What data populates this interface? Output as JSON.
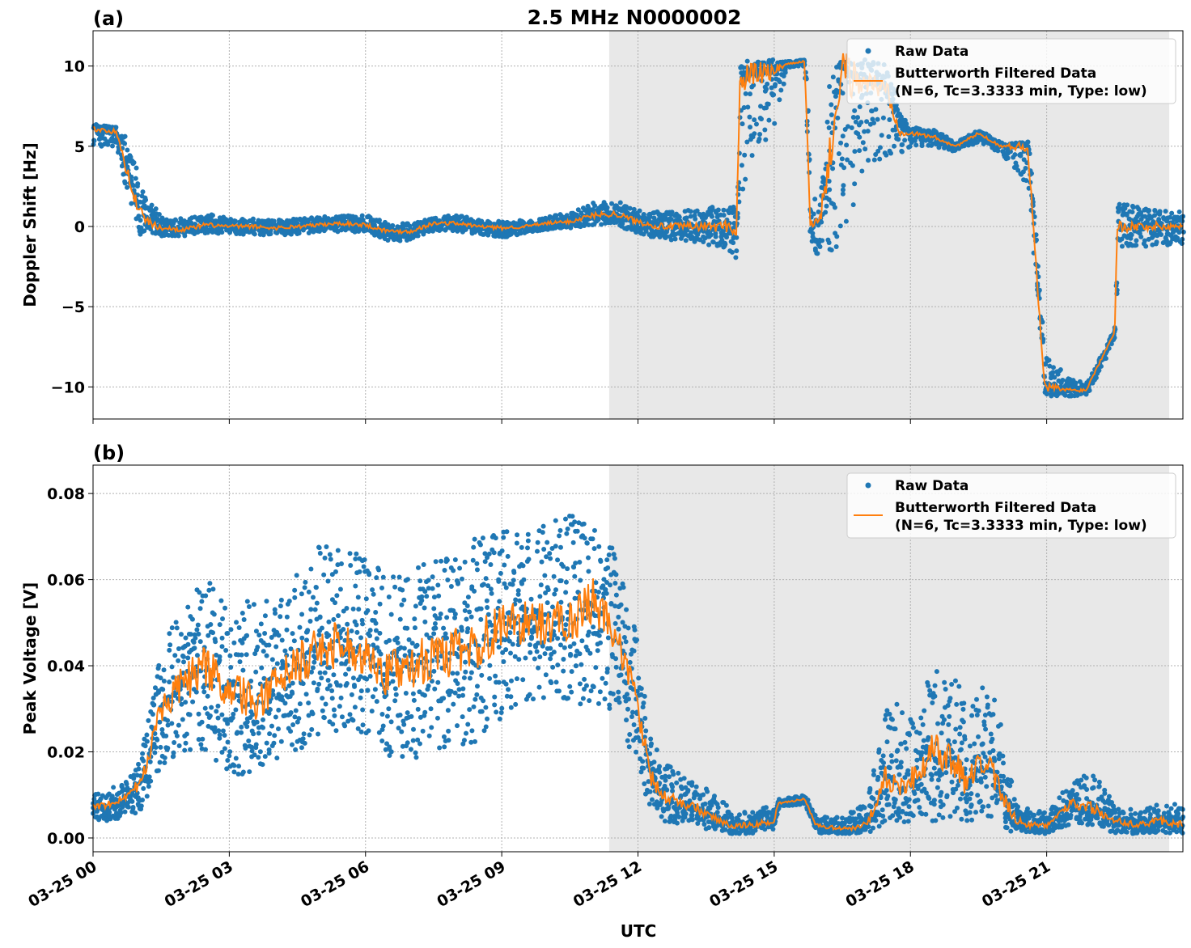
{
  "title": "2.5 MHz N0000002",
  "colors": {
    "raw": "#1f77b4",
    "filtered": "#ff7f0e",
    "shade": "#e8e8e8",
    "grid": "#b0b0b0"
  },
  "chart_data": [
    {
      "type": "scatter",
      "panel_label": "(a)",
      "ylabel": "Doppler Shift [Hz]",
      "xlabel": "",
      "xlim": [
        "03-25 00:00",
        "03-26 00:00"
      ],
      "ylim": [
        -12,
        12.2
      ],
      "yticks": [
        -10,
        -5,
        0,
        5,
        10
      ],
      "ytick_labels": [
        "−10",
        "−5",
        "0",
        "5",
        "10"
      ],
      "grid": true,
      "legend_placement": "top-right",
      "shaded_interval": [
        "03-25 11:22",
        "03-25 23:42"
      ],
      "legend": [
        "Raw Data",
        "Butterworth Filtered Data\n(N=6, Tc=3.3333 min, Type: low)"
      ],
      "columns": [
        "time",
        "filtered",
        "raw_min",
        "raw_max"
      ],
      "series": [
        [
          "00:00",
          6.1,
          5.0,
          6.4
        ],
        [
          "00:30",
          5.9,
          5.0,
          6.2
        ],
        [
          "00:45",
          3.5,
          1.5,
          5.5
        ],
        [
          "01:00",
          1.0,
          -0.5,
          3.0
        ],
        [
          "01:15",
          0.2,
          -0.5,
          1.5
        ],
        [
          "01:30",
          -0.1,
          -0.6,
          0.6
        ],
        [
          "02:00",
          -0.2,
          -0.6,
          0.5
        ],
        [
          "02:30",
          0.1,
          -0.4,
          0.8
        ],
        [
          "03:00",
          0.0,
          -0.5,
          0.5
        ],
        [
          "03:30",
          0.0,
          -0.5,
          0.5
        ],
        [
          "04:00",
          -0.1,
          -0.6,
          0.4
        ],
        [
          "04:30",
          0.0,
          -0.5,
          0.5
        ],
        [
          "05:00",
          0.1,
          -0.4,
          0.6
        ],
        [
          "05:30",
          0.2,
          -0.3,
          0.7
        ],
        [
          "06:00",
          0.1,
          -0.4,
          0.7
        ],
        [
          "06:30",
          -0.3,
          -0.9,
          0.2
        ],
        [
          "07:00",
          -0.3,
          -0.9,
          0.2
        ],
        [
          "07:30",
          0.2,
          -0.3,
          0.6
        ],
        [
          "08:00",
          0.2,
          -0.3,
          0.7
        ],
        [
          "08:30",
          0.0,
          -0.5,
          0.4
        ],
        [
          "09:00",
          -0.1,
          -0.7,
          0.3
        ],
        [
          "09:30",
          0.0,
          -0.4,
          0.4
        ],
        [
          "10:00",
          0.2,
          -0.2,
          0.6
        ],
        [
          "10:30",
          0.3,
          -0.1,
          0.9
        ],
        [
          "11:00",
          0.7,
          0.1,
          1.5
        ],
        [
          "11:30",
          0.8,
          0.1,
          1.6
        ],
        [
          "12:00",
          0.3,
          -0.5,
          1.0
        ],
        [
          "12:30",
          0.0,
          -0.8,
          0.9
        ],
        [
          "13:00",
          0.0,
          -0.9,
          1.0
        ],
        [
          "13:30",
          0.0,
          -1.1,
          1.2
        ],
        [
          "14:00",
          0.0,
          -1.6,
          1.5
        ],
        [
          "14:10",
          -0.3,
          -2.0,
          1.0
        ],
        [
          "14:15",
          9.0,
          2.0,
          10.4
        ],
        [
          "14:30",
          9.5,
          4.0,
          10.4
        ],
        [
          "15:00",
          9.6,
          6.0,
          10.4
        ],
        [
          "15:15",
          10.1,
          9.9,
          10.3
        ],
        [
          "15:40",
          10.3,
          10.0,
          10.4
        ],
        [
          "15:48",
          0.0,
          -1.5,
          2.0
        ],
        [
          "16:00",
          0.2,
          -1.8,
          1.5
        ],
        [
          "16:15",
          5.0,
          -1.5,
          10.3
        ],
        [
          "16:30",
          9.5,
          -2.0,
          10.4
        ],
        [
          "17:00",
          9.0,
          4.0,
          10.4
        ],
        [
          "17:30",
          8.5,
          4.0,
          10.0
        ],
        [
          "17:45",
          6.0,
          4.5,
          7.0
        ],
        [
          "18:00",
          5.8,
          5.0,
          6.2
        ],
        [
          "18:30",
          5.6,
          5.0,
          6.0
        ],
        [
          "19:00",
          5.0,
          4.6,
          5.3
        ],
        [
          "19:30",
          5.8,
          5.3,
          6.0
        ],
        [
          "20:00",
          5.0,
          4.5,
          5.2
        ],
        [
          "20:35",
          5.0,
          2.5,
          5.3
        ],
        [
          "20:57",
          -10.0,
          -10.6,
          -8.0
        ],
        [
          "21:30",
          -10.2,
          -10.6,
          -9.5
        ],
        [
          "21:52",
          -10.2,
          -10.5,
          -9.8
        ],
        [
          "22:30",
          -6.5,
          -7.0,
          -6.2
        ],
        [
          "22:33",
          0.0,
          -1.5,
          1.5
        ],
        [
          "23:00",
          0.0,
          -1.3,
          1.2
        ],
        [
          "23:30",
          0.0,
          -1.2,
          1.0
        ],
        [
          "24:00",
          0.0,
          -1.2,
          1.0
        ]
      ]
    },
    {
      "type": "scatter",
      "panel_label": "(b)",
      "ylabel": "Peak Voltage [V]",
      "xlabel": "UTC",
      "xlim": [
        "03-25 00:00",
        "03-26 00:00"
      ],
      "ylim": [
        -0.0032,
        0.0866
      ],
      "yticks": [
        0,
        0.02,
        0.04,
        0.06,
        0.08
      ],
      "ytick_labels": [
        "0.00",
        "0.02",
        "0.04",
        "0.06",
        "0.08"
      ],
      "xticks": [
        "00:00",
        "03:00",
        "06:00",
        "09:00",
        "12:00",
        "15:00",
        "18:00",
        "21:00"
      ],
      "xtick_labels": [
        "03-25 00",
        "03-25 03",
        "03-25 06",
        "03-25 09",
        "03-25 12",
        "03-25 15",
        "03-25 18",
        "03-25 21"
      ],
      "grid": true,
      "legend_placement": "top-right",
      "shaded_interval": [
        "03-25 11:22",
        "03-25 23:42"
      ],
      "legend": [
        "Raw Data",
        "Butterworth Filtered Data\n(N=6, Tc=3.3333 min, Type: low)"
      ],
      "columns": [
        "time",
        "filtered",
        "raw_min",
        "raw_max"
      ],
      "series": [
        [
          "00:00",
          0.007,
          0.004,
          0.011
        ],
        [
          "00:30",
          0.008,
          0.004,
          0.012
        ],
        [
          "01:00",
          0.012,
          0.006,
          0.018
        ],
        [
          "01:15",
          0.02,
          0.01,
          0.03
        ],
        [
          "01:30",
          0.03,
          0.017,
          0.045
        ],
        [
          "02:00",
          0.036,
          0.02,
          0.055
        ],
        [
          "02:30",
          0.04,
          0.02,
          0.06
        ],
        [
          "03:00",
          0.033,
          0.014,
          0.055
        ],
        [
          "03:30",
          0.032,
          0.014,
          0.055
        ],
        [
          "04:00",
          0.035,
          0.017,
          0.057
        ],
        [
          "04:30",
          0.04,
          0.02,
          0.062
        ],
        [
          "05:00",
          0.044,
          0.024,
          0.07
        ],
        [
          "05:30",
          0.045,
          0.024,
          0.068
        ],
        [
          "06:00",
          0.043,
          0.022,
          0.065
        ],
        [
          "06:30",
          0.038,
          0.018,
          0.062
        ],
        [
          "07:00",
          0.04,
          0.018,
          0.062
        ],
        [
          "07:30",
          0.042,
          0.02,
          0.065
        ],
        [
          "08:00",
          0.043,
          0.021,
          0.068
        ],
        [
          "08:30",
          0.045,
          0.022,
          0.07
        ],
        [
          "09:00",
          0.05,
          0.028,
          0.072
        ],
        [
          "09:30",
          0.05,
          0.032,
          0.072
        ],
        [
          "10:00",
          0.05,
          0.032,
          0.074
        ],
        [
          "10:30",
          0.05,
          0.032,
          0.075
        ],
        [
          "11:00",
          0.055,
          0.03,
          0.074
        ],
        [
          "11:30",
          0.048,
          0.03,
          0.066
        ],
        [
          "12:00",
          0.03,
          0.015,
          0.045
        ],
        [
          "12:15",
          0.015,
          0.006,
          0.025
        ],
        [
          "12:30",
          0.01,
          0.004,
          0.018
        ],
        [
          "13:00",
          0.008,
          0.003,
          0.014
        ],
        [
          "13:30",
          0.006,
          0.002,
          0.012
        ],
        [
          "14:00",
          0.003,
          0.001,
          0.007
        ],
        [
          "14:30",
          0.003,
          0.001,
          0.006
        ],
        [
          "15:00",
          0.004,
          0.002,
          0.008
        ],
        [
          "15:05",
          0.008,
          0.007,
          0.009
        ],
        [
          "15:40",
          0.009,
          0.008,
          0.01
        ],
        [
          "15:55",
          0.003,
          0.001,
          0.005
        ],
        [
          "16:30",
          0.002,
          0.001,
          0.005
        ],
        [
          "17:00",
          0.003,
          0.001,
          0.008
        ],
        [
          "17:15",
          0.008,
          0.002,
          0.02
        ],
        [
          "17:30",
          0.015,
          0.004,
          0.034
        ],
        [
          "17:45",
          0.012,
          0.004,
          0.03
        ],
        [
          "18:00",
          0.013,
          0.003,
          0.028
        ],
        [
          "18:30",
          0.02,
          0.004,
          0.04
        ],
        [
          "18:50",
          0.02,
          0.004,
          0.042
        ],
        [
          "19:15",
          0.012,
          0.003,
          0.03
        ],
        [
          "19:30",
          0.018,
          0.004,
          0.036
        ],
        [
          "19:50",
          0.015,
          0.004,
          0.033
        ],
        [
          "20:15",
          0.005,
          0.001,
          0.012
        ],
        [
          "20:30",
          0.003,
          0.001,
          0.007
        ],
        [
          "21:00",
          0.003,
          0.001,
          0.006
        ],
        [
          "21:30",
          0.008,
          0.003,
          0.014
        ],
        [
          "22:00",
          0.007,
          0.003,
          0.015
        ],
        [
          "22:30",
          0.004,
          0.001,
          0.008
        ],
        [
          "23:00",
          0.003,
          0.001,
          0.006
        ],
        [
          "23:30",
          0.004,
          0.001,
          0.008
        ],
        [
          "24:00",
          0.003,
          0.001,
          0.008
        ]
      ]
    }
  ]
}
